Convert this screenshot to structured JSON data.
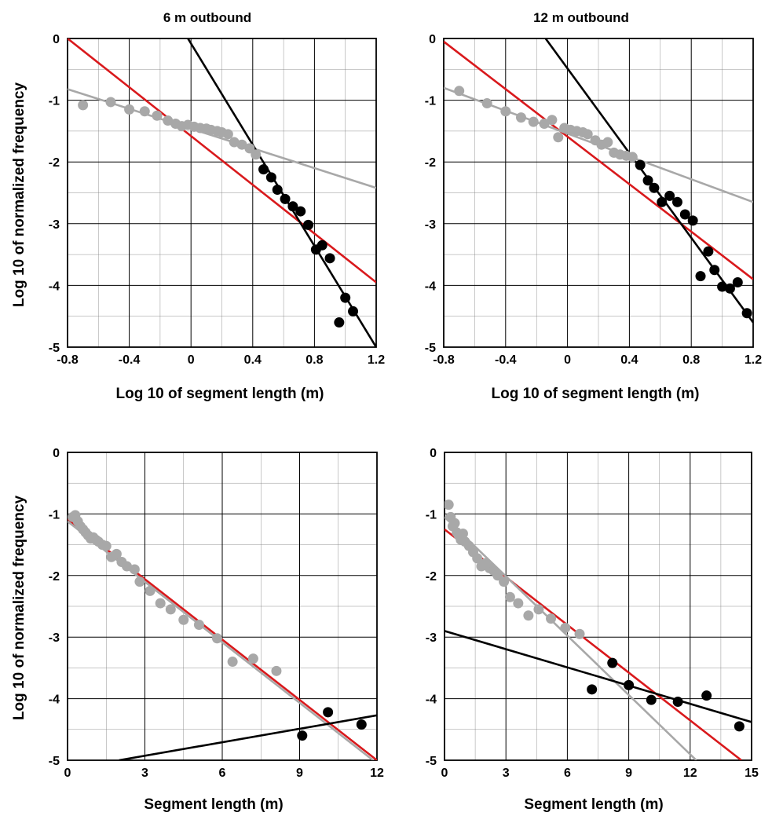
{
  "colors": {
    "red": "#d9191c",
    "gray": "#a8a8a8",
    "black": "#000000",
    "grid": "#000000"
  },
  "chart_data": [
    {
      "type": "scatter",
      "title": "6 m outbound",
      "xlabel": "Log 10 of segment length (m)",
      "ylabel": "Log 10 of normalized frequency",
      "xlim": [
        -0.8,
        1.2
      ],
      "ylim": [
        -5,
        0
      ],
      "x_ticks": [
        -0.8,
        -0.4,
        0,
        0.4,
        0.8,
        1.2
      ],
      "x_tick_labels": [
        "-0.8",
        "-0.4",
        "0",
        "0.4",
        "0.8",
        "1.2"
      ],
      "y_ticks": [
        0,
        -1,
        -2,
        -3,
        -4,
        -5
      ],
      "y_tick_labels": [
        "0",
        "-1",
        "-2",
        "-3",
        "-4",
        "-5"
      ],
      "grid": true,
      "series": [
        {
          "color": "gray",
          "marker": "dot",
          "points": [
            [
              -0.7,
              -1.08
            ],
            [
              -0.52,
              -1.03
            ],
            [
              -0.4,
              -1.15
            ],
            [
              -0.3,
              -1.18
            ],
            [
              -0.22,
              -1.25
            ],
            [
              -0.15,
              -1.33
            ],
            [
              -0.1,
              -1.38
            ],
            [
              -0.06,
              -1.42
            ],
            [
              -0.02,
              -1.4
            ],
            [
              0.02,
              -1.43
            ],
            [
              0.06,
              -1.45
            ],
            [
              0.1,
              -1.46
            ],
            [
              0.13,
              -1.48
            ],
            [
              0.17,
              -1.5
            ],
            [
              0.2,
              -1.52
            ],
            [
              0.24,
              -1.55
            ],
            [
              0.28,
              -1.68
            ],
            [
              0.33,
              -1.72
            ],
            [
              0.38,
              -1.78
            ],
            [
              0.42,
              -1.88
            ]
          ]
        },
        {
          "color": "black",
          "marker": "dot",
          "points": [
            [
              0.47,
              -2.12
            ],
            [
              0.52,
              -2.25
            ],
            [
              0.56,
              -2.45
            ],
            [
              0.61,
              -2.6
            ],
            [
              0.66,
              -2.72
            ],
            [
              0.71,
              -2.8
            ],
            [
              0.76,
              -3.02
            ],
            [
              0.81,
              -3.42
            ],
            [
              0.85,
              -3.35
            ],
            [
              0.9,
              -3.56
            ],
            [
              0.96,
              -4.6
            ],
            [
              1.0,
              -4.2
            ],
            [
              1.05,
              -4.42
            ]
          ]
        },
        {
          "color": "red",
          "marker": "line",
          "line": [
            [
              -0.8,
              0.0
            ],
            [
              1.2,
              -3.95
            ]
          ]
        },
        {
          "color": "gray",
          "marker": "line",
          "line": [
            [
              -0.8,
              -0.82
            ],
            [
              1.2,
              -2.42
            ]
          ]
        },
        {
          "color": "black",
          "marker": "line",
          "line": [
            [
              -0.02,
              0.0
            ],
            [
              1.2,
              -5.0
            ]
          ]
        }
      ]
    },
    {
      "type": "scatter",
      "title": "12 m outbound",
      "xlabel": "Log 10 of segment length (m)",
      "ylabel": "",
      "xlim": [
        -0.8,
        1.2
      ],
      "ylim": [
        -5,
        0
      ],
      "x_ticks": [
        -0.8,
        -0.4,
        0,
        0.4,
        0.8,
        1.2
      ],
      "x_tick_labels": [
        "-0.8",
        "-0.4",
        "0",
        "0.4",
        "0.8",
        "1.2"
      ],
      "y_ticks": [
        0,
        -1,
        -2,
        -3,
        -4,
        -5
      ],
      "y_tick_labels": [
        "0",
        "-1",
        "-2",
        "-3",
        "-4",
        "-5"
      ],
      "grid": true,
      "series": [
        {
          "color": "gray",
          "marker": "dot",
          "points": [
            [
              -0.7,
              -0.85
            ],
            [
              -0.52,
              -1.05
            ],
            [
              -0.4,
              -1.18
            ],
            [
              -0.3,
              -1.28
            ],
            [
              -0.22,
              -1.35
            ],
            [
              -0.15,
              -1.38
            ],
            [
              -0.1,
              -1.32
            ],
            [
              -0.06,
              -1.6
            ],
            [
              -0.02,
              -1.45
            ],
            [
              0.02,
              -1.48
            ],
            [
              0.06,
              -1.5
            ],
            [
              0.1,
              -1.52
            ],
            [
              0.13,
              -1.55
            ],
            [
              0.18,
              -1.65
            ],
            [
              0.22,
              -1.72
            ],
            [
              0.26,
              -1.68
            ],
            [
              0.3,
              -1.85
            ],
            [
              0.34,
              -1.88
            ],
            [
              0.38,
              -1.9
            ],
            [
              0.42,
              -1.92
            ]
          ]
        },
        {
          "color": "black",
          "marker": "dot",
          "points": [
            [
              0.47,
              -2.05
            ],
            [
              0.52,
              -2.3
            ],
            [
              0.56,
              -2.42
            ],
            [
              0.61,
              -2.65
            ],
            [
              0.66,
              -2.55
            ],
            [
              0.71,
              -2.65
            ],
            [
              0.76,
              -2.85
            ],
            [
              0.81,
              -2.95
            ],
            [
              0.86,
              -3.85
            ],
            [
              0.91,
              -3.45
            ],
            [
              0.95,
              -3.75
            ],
            [
              1.0,
              -4.02
            ],
            [
              1.05,
              -4.05
            ],
            [
              1.1,
              -3.95
            ],
            [
              1.16,
              -4.45
            ]
          ]
        },
        {
          "color": "red",
          "marker": "line",
          "line": [
            [
              -0.8,
              -0.05
            ],
            [
              1.2,
              -3.9
            ]
          ]
        },
        {
          "color": "gray",
          "marker": "line",
          "line": [
            [
              -0.8,
              -0.8
            ],
            [
              1.2,
              -2.65
            ]
          ]
        },
        {
          "color": "black",
          "marker": "line",
          "line": [
            [
              -0.2,
              0.2
            ],
            [
              1.2,
              -4.6
            ]
          ]
        }
      ]
    },
    {
      "type": "scatter",
      "title": "",
      "xlabel": "Segment length (m)",
      "ylabel": "Log 10 of normalized frequency",
      "xlim": [
        0,
        12
      ],
      "ylim": [
        -5,
        0
      ],
      "x_ticks": [
        0,
        3,
        6,
        9,
        12
      ],
      "x_tick_labels": [
        "0",
        "3",
        "6",
        "9",
        "12"
      ],
      "y_ticks": [
        0,
        -1,
        -2,
        -3,
        -4,
        -5
      ],
      "y_tick_labels": [
        "0",
        "-1",
        "-2",
        "-3",
        "-4",
        "-5"
      ],
      "grid": true,
      "series": [
        {
          "color": "gray",
          "marker": "dot",
          "points": [
            [
              0.2,
              -1.05
            ],
            [
              0.3,
              -1.02
            ],
            [
              0.4,
              -1.12
            ],
            [
              0.5,
              -1.2
            ],
            [
              0.6,
              -1.25
            ],
            [
              0.7,
              -1.3
            ],
            [
              0.8,
              -1.35
            ],
            [
              0.9,
              -1.4
            ],
            [
              1.0,
              -1.38
            ],
            [
              1.1,
              -1.42
            ],
            [
              1.2,
              -1.45
            ],
            [
              1.35,
              -1.5
            ],
            [
              1.5,
              -1.52
            ],
            [
              1.7,
              -1.7
            ],
            [
              1.9,
              -1.65
            ],
            [
              2.1,
              -1.78
            ],
            [
              2.3,
              -1.85
            ],
            [
              2.6,
              -1.9
            ],
            [
              2.8,
              -2.1
            ],
            [
              3.2,
              -2.25
            ],
            [
              3.6,
              -2.45
            ],
            [
              4.0,
              -2.55
            ],
            [
              4.5,
              -2.72
            ],
            [
              5.1,
              -2.8
            ],
            [
              5.8,
              -3.02
            ],
            [
              6.4,
              -3.4
            ],
            [
              7.2,
              -3.35
            ],
            [
              8.1,
              -3.55
            ]
          ]
        },
        {
          "color": "black",
          "marker": "dot",
          "points": [
            [
              9.1,
              -4.6
            ],
            [
              10.1,
              -4.22
            ],
            [
              11.4,
              -4.42
            ]
          ]
        },
        {
          "color": "red",
          "marker": "line",
          "line": [
            [
              0,
              -1.08
            ],
            [
              12,
              -5.0
            ]
          ]
        },
        {
          "color": "gray",
          "marker": "line",
          "line": [
            [
              0,
              -1.12
            ],
            [
              12,
              -5.05
            ]
          ]
        },
        {
          "color": "black",
          "marker": "line",
          "line": [
            [
              2.0,
              -5.0
            ],
            [
              12,
              -4.27
            ]
          ]
        }
      ]
    },
    {
      "type": "scatter",
      "title": "",
      "xlabel": "Segment length (m)",
      "ylabel": "",
      "xlim": [
        0,
        15
      ],
      "ylim": [
        -5,
        0
      ],
      "x_ticks": [
        0,
        3,
        6,
        9,
        12,
        15
      ],
      "x_tick_labels": [
        "0",
        "3",
        "6",
        "9",
        "12",
        "15"
      ],
      "y_ticks": [
        0,
        -1,
        -2,
        -3,
        -4,
        -5
      ],
      "y_tick_labels": [
        "0",
        "-1",
        "-2",
        "-3",
        "-4",
        "-5"
      ],
      "grid": true,
      "series": [
        {
          "color": "gray",
          "marker": "dot",
          "points": [
            [
              0.2,
              -0.85
            ],
            [
              0.3,
              -1.05
            ],
            [
              0.4,
              -1.2
            ],
            [
              0.5,
              -1.15
            ],
            [
              0.6,
              -1.3
            ],
            [
              0.7,
              -1.35
            ],
            [
              0.8,
              -1.42
            ],
            [
              0.9,
              -1.32
            ],
            [
              1.0,
              -1.45
            ],
            [
              1.2,
              -1.52
            ],
            [
              1.4,
              -1.62
            ],
            [
              1.6,
              -1.72
            ],
            [
              1.8,
              -1.85
            ],
            [
              2.0,
              -1.8
            ],
            [
              2.2,
              -1.88
            ],
            [
              2.4,
              -1.92
            ],
            [
              2.6,
              -2.0
            ],
            [
              2.9,
              -2.1
            ],
            [
              3.2,
              -2.35
            ],
            [
              3.6,
              -2.45
            ],
            [
              4.1,
              -2.65
            ],
            [
              4.6,
              -2.55
            ],
            [
              5.2,
              -2.7
            ],
            [
              5.9,
              -2.85
            ],
            [
              6.6,
              -2.95
            ]
          ]
        },
        {
          "color": "black",
          "marker": "dot",
          "points": [
            [
              7.2,
              -3.85
            ],
            [
              8.2,
              -3.42
            ],
            [
              9.0,
              -3.78
            ],
            [
              10.1,
              -4.02
            ],
            [
              11.4,
              -4.05
            ],
            [
              12.8,
              -3.95
            ],
            [
              14.4,
              -4.45
            ]
          ]
        },
        {
          "color": "red",
          "marker": "line",
          "line": [
            [
              0,
              -1.25
            ],
            [
              14.5,
              -5.0
            ]
          ]
        },
        {
          "color": "gray",
          "marker": "line",
          "line": [
            [
              0,
              -1.05
            ],
            [
              12.3,
              -5.0
            ]
          ]
        },
        {
          "color": "black",
          "marker": "line",
          "line": [
            [
              0,
              -2.9
            ],
            [
              15,
              -4.38
            ]
          ]
        }
      ]
    }
  ]
}
